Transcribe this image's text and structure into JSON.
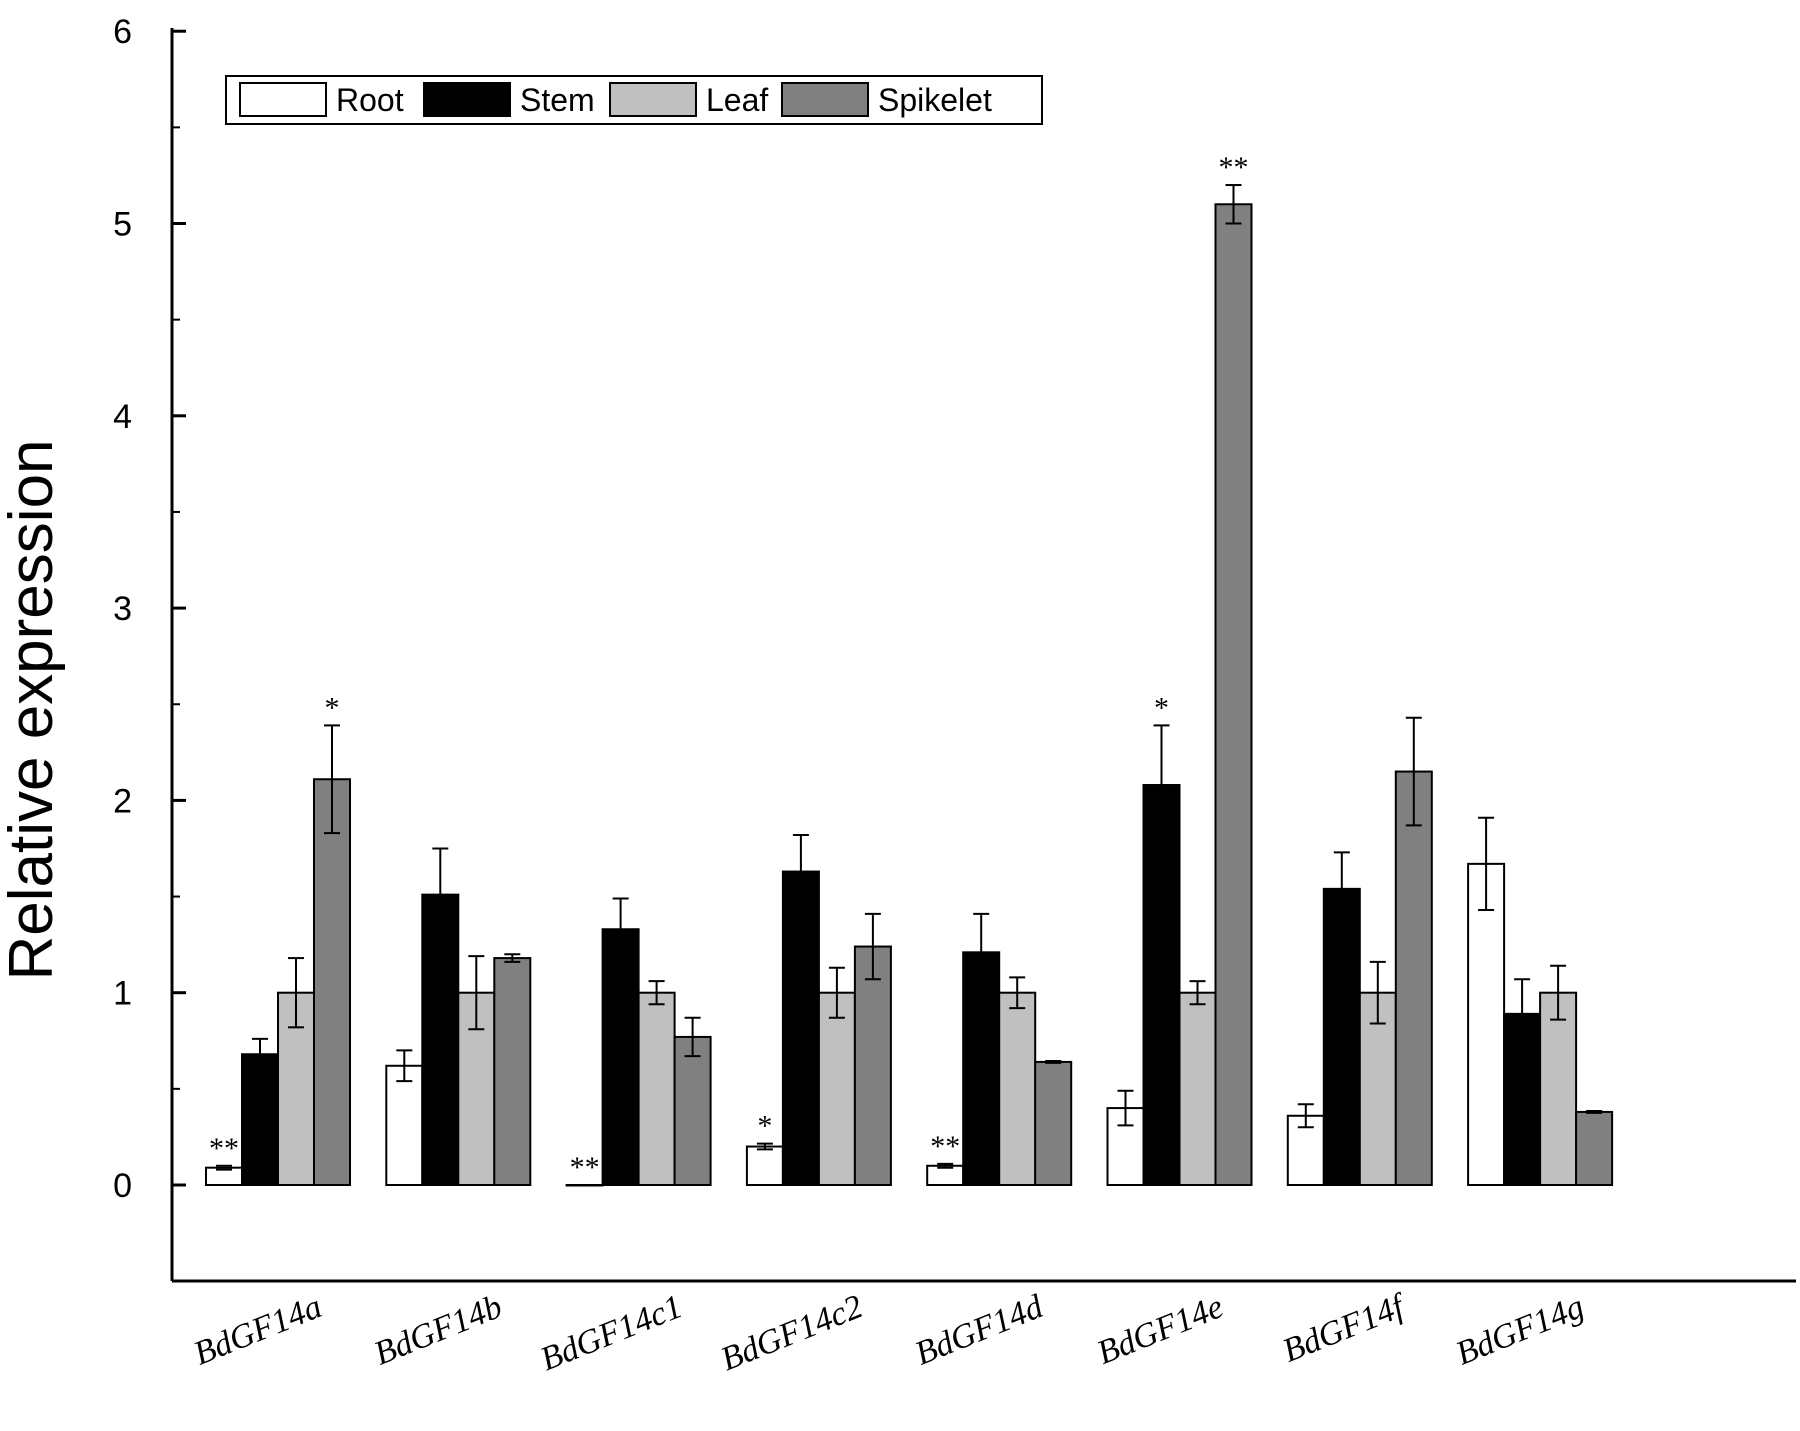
{
  "chart_data": {
    "type": "bar",
    "ylabel": "Relative expression",
    "ylim": [
      -0.5,
      6
    ],
    "yticks": [
      0,
      1,
      2,
      3,
      4,
      5,
      6
    ],
    "categories": [
      "BdGF14a",
      "BdGF14b",
      "BdGF14c1",
      "BdGF14c2",
      "BdGF14d",
      "BdGF14e",
      "BdGF14f",
      "BdGF14g"
    ],
    "legend_position": "top-left",
    "series": [
      {
        "name": "Root",
        "color": "#ffffff",
        "values": [
          0.09,
          0.62,
          0.0,
          0.2,
          0.1,
          0.4,
          0.36,
          1.67
        ],
        "errors": [
          0.01,
          0.08,
          0.0,
          0.015,
          0.01,
          0.09,
          0.06,
          0.24
        ],
        "significance": [
          "**",
          "",
          "**",
          "*",
          "**",
          "",
          "",
          ""
        ]
      },
      {
        "name": "Stem",
        "color": "#000000",
        "values": [
          0.68,
          1.51,
          1.33,
          1.63,
          1.21,
          2.08,
          1.54,
          0.89
        ],
        "errors": [
          0.08,
          0.24,
          0.16,
          0.19,
          0.2,
          0.31,
          0.19,
          0.18
        ],
        "significance": [
          "",
          "",
          "",
          "",
          "",
          "*",
          "",
          ""
        ]
      },
      {
        "name": "Leaf",
        "color": "#c0c0c0",
        "values": [
          1.0,
          1.0,
          1.0,
          1.0,
          1.0,
          1.0,
          1.0,
          1.0
        ],
        "errors": [
          0.18,
          0.19,
          0.06,
          0.13,
          0.08,
          0.06,
          0.16,
          0.14
        ],
        "significance": [
          "",
          "",
          "",
          "",
          "",
          "",
          "",
          ""
        ]
      },
      {
        "name": "Spikelet",
        "color": "#808080",
        "values": [
          2.11,
          1.18,
          0.77,
          1.24,
          0.64,
          5.1,
          2.15,
          0.38
        ],
        "errors": [
          0.28,
          0.02,
          0.1,
          0.17,
          0.005,
          0.1,
          0.28,
          0.005
        ],
        "significance": [
          "*",
          "",
          "",
          "",
          "",
          "**",
          "",
          ""
        ]
      }
    ]
  }
}
